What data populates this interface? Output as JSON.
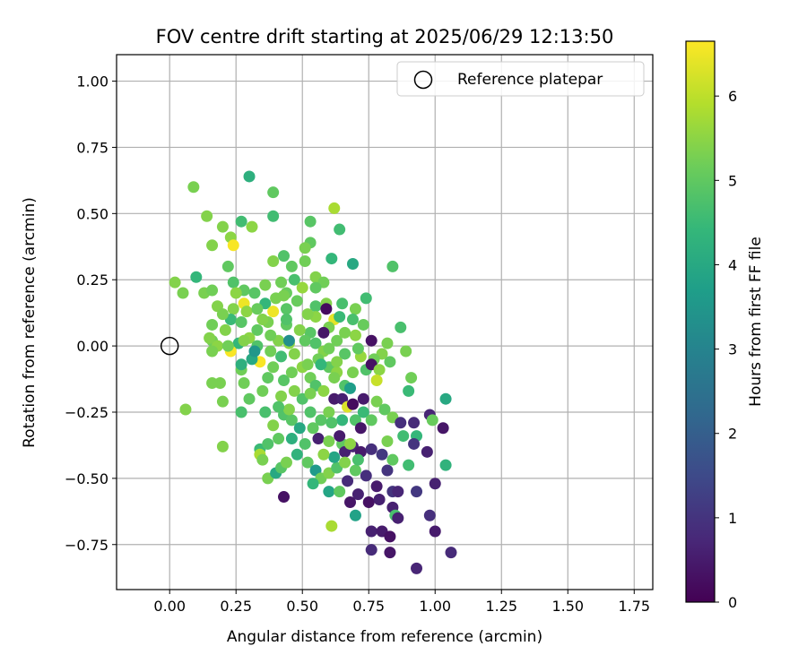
{
  "chart_data": {
    "type": "scatter",
    "title": "FOV centre drift starting at 2025/06/29 12:13:50",
    "xlabel": "Angular distance from reference (arcmin)",
    "ylabel": "Rotation from reference (arcmin)",
    "xlim": [
      -0.2,
      1.82
    ],
    "ylim": [
      -0.92,
      1.1
    ],
    "xticks": [
      0.0,
      0.25,
      0.5,
      0.75,
      1.0,
      1.25,
      1.5,
      1.75
    ],
    "xtick_labels": [
      "0.00",
      "0.25",
      "0.50",
      "0.75",
      "1.00",
      "1.25",
      "1.50",
      "1.75"
    ],
    "yticks": [
      -0.75,
      -0.5,
      -0.25,
      0.0,
      0.25,
      0.5,
      0.75,
      1.0
    ],
    "ytick_labels": [
      "−0.75",
      "−0.50",
      "−0.25",
      "0.00",
      "0.25",
      "0.50",
      "0.75",
      "1.00"
    ],
    "grid": true,
    "legend": {
      "placement": "top-right",
      "entries": [
        "Reference platepar"
      ]
    },
    "reference_point": {
      "x": 0.0,
      "y": 0.0
    },
    "colorbar": {
      "label": "Hours from first FF file",
      "range": [
        0,
        6.65
      ],
      "ticks": [
        0,
        1,
        2,
        3,
        4,
        5,
        6
      ],
      "tick_labels": [
        "0",
        "1",
        "2",
        "3",
        "4",
        "5",
        "6"
      ],
      "colormap": "viridis"
    },
    "points": [
      [
        0.09,
        0.6,
        5.3
      ],
      [
        0.14,
        0.49,
        5.4
      ],
      [
        0.3,
        0.64,
        4.2
      ],
      [
        0.39,
        0.58,
        5.0
      ],
      [
        0.39,
        0.49,
        4.6
      ],
      [
        0.62,
        0.52,
        5.8
      ],
      [
        0.27,
        0.47,
        4.6
      ],
      [
        0.31,
        0.45,
        5.5
      ],
      [
        0.53,
        0.47,
        4.9
      ],
      [
        0.64,
        0.44,
        4.6
      ],
      [
        0.2,
        0.45,
        5.4
      ],
      [
        0.23,
        0.41,
        5.5
      ],
      [
        0.24,
        0.38,
        6.6
      ],
      [
        0.16,
        0.38,
        5.4
      ],
      [
        0.22,
        0.3,
        5.0
      ],
      [
        0.53,
        0.39,
        5.0
      ],
      [
        0.51,
        0.37,
        5.3
      ],
      [
        0.43,
        0.34,
        4.8
      ],
      [
        0.39,
        0.32,
        5.4
      ],
      [
        0.46,
        0.3,
        5.0
      ],
      [
        0.51,
        0.32,
        5.2
      ],
      [
        0.61,
        0.33,
        4.4
      ],
      [
        0.69,
        0.31,
        4.0
      ],
      [
        0.84,
        0.3,
        4.8
      ],
      [
        0.02,
        0.24,
        5.4
      ],
      [
        0.1,
        0.26,
        4.4
      ],
      [
        0.05,
        0.2,
        5.3
      ],
      [
        0.13,
        0.2,
        5.3
      ],
      [
        0.16,
        0.21,
        5.2
      ],
      [
        0.24,
        0.24,
        4.8
      ],
      [
        0.28,
        0.21,
        5.0
      ],
      [
        0.32,
        0.2,
        4.9
      ],
      [
        0.36,
        0.23,
        5.3
      ],
      [
        0.42,
        0.24,
        5.2
      ],
      [
        0.47,
        0.25,
        4.7
      ],
      [
        0.55,
        0.26,
        5.4
      ],
      [
        0.58,
        0.24,
        5.2
      ],
      [
        0.5,
        0.22,
        5.6
      ],
      [
        0.55,
        0.22,
        5.0
      ],
      [
        0.44,
        0.2,
        5.1
      ],
      [
        0.4,
        0.18,
        5.3
      ],
      [
        0.36,
        0.16,
        4.4
      ],
      [
        0.28,
        0.16,
        6.5
      ],
      [
        0.24,
        0.14,
        5.4
      ],
      [
        0.18,
        0.15,
        5.4
      ],
      [
        0.16,
        0.08,
        5.2
      ],
      [
        0.21,
        0.06,
        5.4
      ],
      [
        0.23,
        0.1,
        4.5
      ],
      [
        0.29,
        0.13,
        5.5
      ],
      [
        0.33,
        0.14,
        5.1
      ],
      [
        0.39,
        0.13,
        6.5
      ],
      [
        0.44,
        0.14,
        4.9
      ],
      [
        0.48,
        0.17,
        5.1
      ],
      [
        0.55,
        0.15,
        4.8
      ],
      [
        0.59,
        0.16,
        5.4
      ],
      [
        0.65,
        0.16,
        4.7
      ],
      [
        0.7,
        0.14,
        5.3
      ],
      [
        0.74,
        0.18,
        4.6
      ],
      [
        0.55,
        0.11,
        5.5
      ],
      [
        0.62,
        0.1,
        6.4
      ],
      [
        0.6,
        0.07,
        5.3
      ],
      [
        0.53,
        0.05,
        4.9
      ],
      [
        0.49,
        0.06,
        5.4
      ],
      [
        0.44,
        0.08,
        5.0
      ],
      [
        0.37,
        0.09,
        5.3
      ],
      [
        0.33,
        0.06,
        5.0
      ],
      [
        0.27,
        0.09,
        4.9
      ],
      [
        0.3,
        0.03,
        5.5
      ],
      [
        0.26,
        0.01,
        4.4
      ],
      [
        0.16,
        0.02,
        5.2
      ],
      [
        0.18,
        0.0,
        5.5
      ],
      [
        0.15,
        0.03,
        5.4
      ],
      [
        0.23,
        -0.02,
        6.6
      ],
      [
        0.28,
        0.02,
        5.4
      ],
      [
        0.33,
        0.0,
        4.8
      ],
      [
        0.38,
        -0.02,
        5.2
      ],
      [
        0.41,
        0.02,
        5.4
      ],
      [
        0.45,
        0.01,
        5.5
      ],
      [
        0.51,
        0.02,
        5.0
      ],
      [
        0.55,
        0.01,
        4.8
      ],
      [
        0.58,
        -0.02,
        5.4
      ],
      [
        0.63,
        0.02,
        5.2
      ],
      [
        0.66,
        -0.03,
        4.9
      ],
      [
        0.7,
        0.04,
        5.5
      ],
      [
        0.73,
        0.08,
        5.1
      ],
      [
        0.76,
        0.02,
        0.3
      ],
      [
        0.82,
        0.01,
        5.3
      ],
      [
        0.87,
        0.07,
        4.7
      ],
      [
        0.89,
        -0.02,
        5.3
      ],
      [
        0.8,
        -0.03,
        5.4
      ],
      [
        0.77,
        -0.05,
        5.2
      ],
      [
        0.72,
        -0.04,
        5.6
      ],
      [
        0.16,
        -0.02,
        5.3
      ],
      [
        0.19,
        -0.14,
        5.3
      ],
      [
        0.16,
        -0.14,
        5.3
      ],
      [
        0.06,
        -0.24,
        5.4
      ],
      [
        0.2,
        -0.21,
        5.3
      ],
      [
        0.27,
        -0.09,
        5.2
      ],
      [
        0.28,
        -0.14,
        5.2
      ],
      [
        0.3,
        -0.2,
        5.0
      ],
      [
        0.34,
        -0.06,
        6.6
      ],
      [
        0.37,
        -0.12,
        5.0
      ],
      [
        0.39,
        -0.08,
        5.2
      ],
      [
        0.43,
        -0.13,
        4.9
      ],
      [
        0.42,
        -0.19,
        5.4
      ],
      [
        0.46,
        -0.1,
        5.2
      ],
      [
        0.5,
        -0.08,
        5.5
      ],
      [
        0.53,
        -0.12,
        5.2
      ],
      [
        0.55,
        -0.15,
        4.8
      ],
      [
        0.56,
        -0.05,
        5.2
      ],
      [
        0.6,
        -0.08,
        5.0
      ],
      [
        0.63,
        -0.1,
        5.5
      ],
      [
        0.66,
        -0.15,
        4.8
      ],
      [
        0.69,
        -0.1,
        5.3
      ],
      [
        0.74,
        -0.09,
        4.8
      ],
      [
        0.76,
        -0.07,
        0.3
      ],
      [
        0.79,
        -0.09,
        5.5
      ],
      [
        0.83,
        -0.06,
        5.0
      ],
      [
        0.78,
        -0.13,
        6.1
      ],
      [
        0.91,
        -0.12,
        5.2
      ],
      [
        0.9,
        -0.17,
        4.5
      ],
      [
        0.27,
        -0.25,
        4.7
      ],
      [
        0.36,
        -0.25,
        4.7
      ],
      [
        0.39,
        -0.3,
        5.4
      ],
      [
        0.43,
        -0.26,
        4.8
      ],
      [
        0.46,
        -0.28,
        4.9
      ],
      [
        0.49,
        -0.31,
        4.0
      ],
      [
        0.53,
        -0.25,
        4.8
      ],
      [
        0.57,
        -0.28,
        4.9
      ],
      [
        0.6,
        -0.25,
        5.3
      ],
      [
        0.62,
        -0.2,
        0.5
      ],
      [
        0.65,
        -0.2,
        0.6
      ],
      [
        0.67,
        -0.23,
        6.3
      ],
      [
        0.7,
        -0.28,
        4.8
      ],
      [
        0.73,
        -0.25,
        4.5
      ],
      [
        0.76,
        -0.28,
        5.0
      ],
      [
        0.78,
        -0.21,
        5.3
      ],
      [
        0.81,
        -0.24,
        5.0
      ],
      [
        0.84,
        -0.27,
        5.3
      ],
      [
        0.87,
        -0.29,
        0.9
      ],
      [
        0.92,
        -0.29,
        0.8
      ],
      [
        0.98,
        -0.26,
        0.7
      ],
      [
        0.99,
        -0.28,
        5.1
      ],
      [
        1.03,
        -0.31,
        0.4
      ],
      [
        1.04,
        -0.2,
        4.0
      ],
      [
        0.88,
        -0.34,
        4.6
      ],
      [
        0.93,
        -0.34,
        4.4
      ],
      [
        0.92,
        -0.37,
        1.0
      ],
      [
        0.97,
        -0.4,
        0.6
      ],
      [
        0.9,
        -0.45,
        4.6
      ],
      [
        0.34,
        -0.39,
        4.5
      ],
      [
        0.34,
        -0.41,
        5.8
      ],
      [
        0.37,
        -0.37,
        4.8
      ],
      [
        0.41,
        -0.35,
        5.0
      ],
      [
        0.46,
        -0.35,
        4.2
      ],
      [
        0.51,
        -0.37,
        4.8
      ],
      [
        0.56,
        -0.35,
        0.6
      ],
      [
        0.6,
        -0.36,
        5.3
      ],
      [
        0.65,
        -0.37,
        5.0
      ],
      [
        0.66,
        -0.4,
        0.6
      ],
      [
        0.69,
        -0.38,
        0.7
      ],
      [
        0.72,
        -0.4,
        0.5
      ],
      [
        0.76,
        -0.39,
        0.9
      ],
      [
        0.8,
        -0.41,
        1.1
      ],
      [
        0.84,
        -0.43,
        5.0
      ],
      [
        0.82,
        -0.36,
        5.3
      ],
      [
        0.35,
        -0.43,
        5.3
      ],
      [
        0.37,
        -0.5,
        5.3
      ],
      [
        0.4,
        -0.48,
        4.0
      ],
      [
        0.42,
        -0.46,
        4.9
      ],
      [
        0.44,
        -0.44,
        5.3
      ],
      [
        0.48,
        -0.41,
        4.3
      ],
      [
        0.52,
        -0.44,
        5.0
      ],
      [
        0.55,
        -0.47,
        3.6
      ],
      [
        0.57,
        -0.5,
        5.2
      ],
      [
        0.6,
        -0.48,
        5.4
      ],
      [
        0.63,
        -0.46,
        4.8
      ],
      [
        0.67,
        -0.51,
        0.8
      ],
      [
        0.7,
        -0.47,
        5.0
      ],
      [
        0.74,
        -0.49,
        0.9
      ],
      [
        0.78,
        -0.53,
        0.5
      ],
      [
        0.82,
        -0.47,
        1.0
      ],
      [
        0.84,
        -0.55,
        1.0
      ],
      [
        0.86,
        -0.55,
        0.7
      ],
      [
        0.93,
        -0.55,
        1.1
      ],
      [
        1.0,
        -0.52,
        0.6
      ],
      [
        1.04,
        -0.45,
        4.3
      ],
      [
        0.43,
        -0.57,
        0.3
      ],
      [
        0.6,
        -0.55,
        3.9
      ],
      [
        0.64,
        -0.55,
        5.0
      ],
      [
        0.68,
        -0.59,
        0.4
      ],
      [
        0.71,
        -0.56,
        0.6
      ],
      [
        0.75,
        -0.59,
        0.3
      ],
      [
        0.79,
        -0.58,
        0.6
      ],
      [
        0.84,
        -0.61,
        0.6
      ],
      [
        0.85,
        -0.64,
        4.7
      ],
      [
        0.86,
        -0.65,
        0.6
      ],
      [
        0.7,
        -0.64,
        3.8
      ],
      [
        0.61,
        -0.68,
        5.8
      ],
      [
        0.76,
        -0.7,
        0.6
      ],
      [
        0.8,
        -0.7,
        0.5
      ],
      [
        0.83,
        -0.72,
        0.3
      ],
      [
        0.76,
        -0.77,
        0.8
      ],
      [
        0.83,
        -0.78,
        0.4
      ],
      [
        0.93,
        -0.84,
        0.7
      ],
      [
        0.98,
        -0.64,
        0.9
      ],
      [
        1.0,
        -0.7,
        0.5
      ],
      [
        1.06,
        -0.78,
        0.8
      ],
      [
        0.2,
        -0.38,
        5.4
      ],
      [
        0.27,
        -0.07,
        4.2
      ],
      [
        0.31,
        -0.05,
        4.0
      ],
      [
        0.32,
        -0.02,
        3.5
      ],
      [
        0.45,
        0.02,
        3.3
      ],
      [
        0.58,
        0.05,
        0.4
      ],
      [
        0.59,
        0.14,
        0.2
      ],
      [
        0.64,
        0.11,
        4.5
      ],
      [
        0.57,
        -0.07,
        4.4
      ],
      [
        0.42,
        -0.04,
        4.6
      ],
      [
        0.44,
        0.1,
        4.8
      ],
      [
        0.52,
        0.12,
        5.4
      ],
      [
        0.66,
        0.05,
        5.3
      ],
      [
        0.69,
        0.1,
        4.7
      ],
      [
        0.47,
        -0.17,
        5.4
      ],
      [
        0.5,
        -0.2,
        4.8
      ],
      [
        0.58,
        -0.17,
        5.5
      ],
      [
        0.62,
        -0.12,
        5.3
      ],
      [
        0.68,
        -0.16,
        3.7
      ],
      [
        0.65,
        -0.28,
        4.4
      ],
      [
        0.72,
        -0.31,
        0.4
      ],
      [
        0.69,
        -0.22,
        0.2
      ],
      [
        0.73,
        -0.2,
        0.5
      ],
      [
        0.61,
        -0.29,
        4.8
      ],
      [
        0.54,
        -0.31,
        5.0
      ],
      [
        0.64,
        -0.34,
        0.5
      ],
      [
        0.68,
        -0.37,
        5.5
      ],
      [
        0.71,
        -0.43,
        4.7
      ],
      [
        0.66,
        -0.44,
        5.4
      ],
      [
        0.62,
        -0.42,
        3.9
      ],
      [
        0.54,
        -0.52,
        4.4
      ],
      [
        0.58,
        -0.41,
        5.5
      ],
      [
        0.45,
        -0.24,
        5.4
      ],
      [
        0.35,
        -0.17,
        5.2
      ],
      [
        0.41,
        -0.23,
        4.8
      ],
      [
        0.52,
        -0.07,
        5.3
      ],
      [
        0.47,
        -0.03,
        5.4
      ],
      [
        0.6,
        -0.01,
        5.2
      ],
      [
        0.71,
        -0.01,
        5.0
      ],
      [
        0.38,
        0.04,
        5.2
      ],
      [
        0.35,
        0.1,
        5.4
      ],
      [
        0.43,
        0.19,
        5.3
      ],
      [
        0.25,
        0.2,
        5.5
      ],
      [
        0.2,
        0.12,
        5.3
      ],
      [
        0.22,
        0.0,
        5.2
      ],
      [
        0.53,
        -0.18,
        5.3
      ],
      [
        0.63,
        -0.06,
        5.4
      ]
    ]
  }
}
